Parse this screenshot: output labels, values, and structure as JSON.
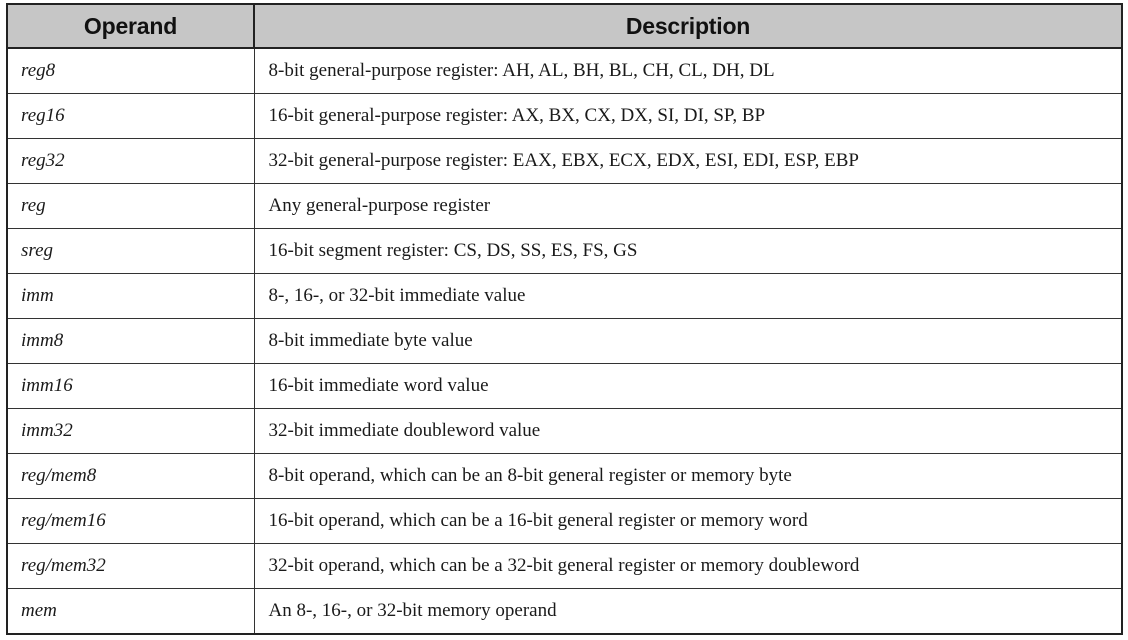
{
  "table": {
    "headers": {
      "operand": "Operand",
      "description": "Description"
    },
    "rows": [
      {
        "operand": "reg8",
        "description": "8-bit general-purpose register: AH, AL, BH, BL, CH, CL, DH, DL"
      },
      {
        "operand": "reg16",
        "description": "16-bit general-purpose register: AX, BX, CX, DX, SI, DI, SP, BP"
      },
      {
        "operand": "reg32",
        "description": "32-bit general-purpose register: EAX, EBX, ECX, EDX, ESI, EDI, ESP, EBP"
      },
      {
        "operand": "reg",
        "description": "Any general-purpose register"
      },
      {
        "operand": "sreg",
        "description": "16-bit segment register: CS, DS, SS, ES, FS, GS"
      },
      {
        "operand": "imm",
        "description": "8-, 16-, or 32-bit immediate value"
      },
      {
        "operand": "imm8",
        "description": "8-bit immediate byte value"
      },
      {
        "operand": "imm16",
        "description": "16-bit immediate word value"
      },
      {
        "operand": "imm32",
        "description": "32-bit immediate doubleword value"
      },
      {
        "operand": "reg/mem8",
        "description": "8-bit operand, which can be an 8-bit general register or memory byte"
      },
      {
        "operand": "reg/mem16",
        "description": "16-bit operand, which can be a 16-bit general register or memory word"
      },
      {
        "operand": "reg/mem32",
        "description": "32-bit operand, which can be a 32-bit general register or memory doubleword"
      },
      {
        "operand": "mem",
        "description": "An 8-, 16-, or 32-bit memory operand"
      }
    ]
  }
}
